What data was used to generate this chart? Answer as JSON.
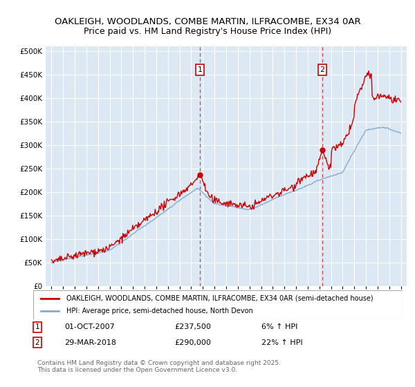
{
  "title_line1": "OAKLEIGH, WOODLANDS, COMBE MARTIN, ILFRACOMBE, EX34 0AR",
  "title_line2": "Price paid vs. HM Land Registry's House Price Index (HPI)",
  "bg_color": "#dce9f5",
  "red_line_color": "#cc0000",
  "blue_line_color": "#88aacc",
  "marker1_x": 2007.75,
  "marker1_label": "1",
  "marker1_date": "01-OCT-2007",
  "marker1_price": "£237,500",
  "marker1_hpi": "6% ↑ HPI",
  "marker2_x": 2018.25,
  "marker2_label": "2",
  "marker2_date": "29-MAR-2018",
  "marker2_price": "£290,000",
  "marker2_hpi": "22% ↑ HPI",
  "legend_line1": "OAKLEIGH, WOODLANDS, COMBE MARTIN, ILFRACOMBE, EX34 0AR (semi-detached house)",
  "legend_line2": "HPI: Average price, semi-detached house, North Devon",
  "footnote": "Contains HM Land Registry data © Crown copyright and database right 2025.\nThis data is licensed under the Open Government Licence v3.0.",
  "ylim": [
    0,
    510000
  ],
  "xlim": [
    1994.5,
    2025.5
  ],
  "yticks": [
    0,
    50000,
    100000,
    150000,
    200000,
    250000,
    300000,
    350000,
    400000,
    450000,
    500000
  ]
}
